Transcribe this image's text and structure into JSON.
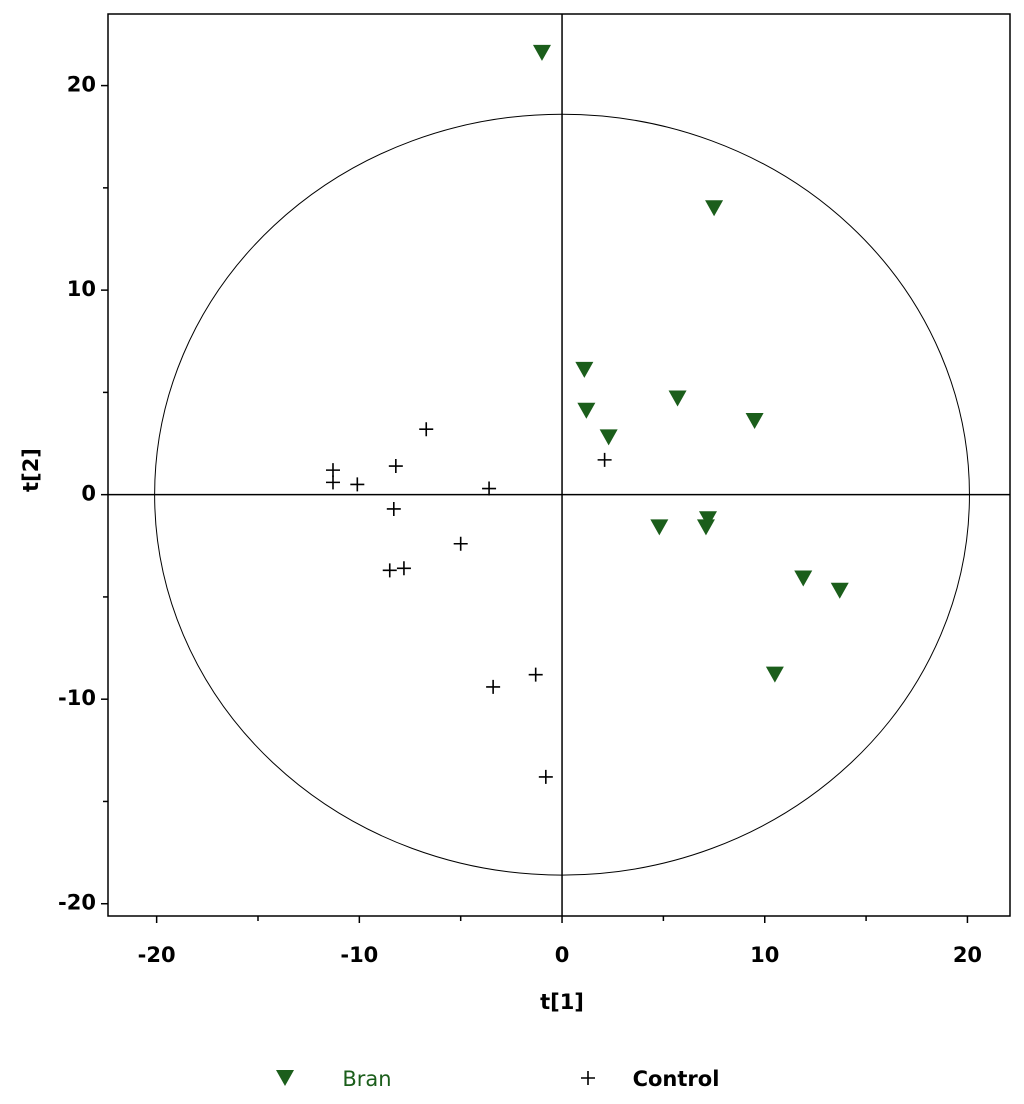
{
  "chart_data": {
    "type": "scatter",
    "x_label": "t[1]",
    "y_label": "t[2]",
    "xlim": [
      -22.4,
      22.1
    ],
    "ylim": [
      -20.6,
      23.5
    ],
    "xticks": [
      -20,
      -10,
      0,
      10,
      20
    ],
    "yticks": [
      -20,
      -10,
      0,
      10,
      20
    ],
    "xminorticks": [
      -15,
      -5,
      5,
      15
    ],
    "yminorticks": [
      -15,
      -5,
      5,
      15
    ],
    "ellipse": {
      "rx": 20.1,
      "ry": 18.6
    },
    "legend": "bottom",
    "series": [
      {
        "name": "Bran",
        "color": "#1b5e1b",
        "marker": "triangle-down",
        "x": [
          -0.99,
          7.5,
          1.1,
          5.7,
          1.2,
          2.3,
          9.5,
          4.8,
          7.2,
          7.1,
          11.9,
          13.7,
          10.5
        ],
        "y": [
          21.6,
          14.0,
          6.1,
          4.7,
          4.1,
          2.8,
          3.6,
          -1.6,
          -1.2,
          -1.6,
          -4.1,
          -4.7,
          -8.8
        ]
      },
      {
        "name": "Control",
        "color": "#000000",
        "marker": "plus",
        "x": [
          -6.7,
          -11.3,
          -11.3,
          -10.1,
          -8.2,
          -3.6,
          2.1,
          -8.3,
          -5.0,
          -8.5,
          -7.8,
          -3.4,
          -1.3,
          -0.8
        ],
        "y": [
          3.2,
          1.2,
          0.6,
          0.5,
          1.4,
          0.3,
          1.7,
          -0.7,
          -2.4,
          -3.7,
          -3.6,
          -9.4,
          -8.8,
          -13.8
        ]
      }
    ]
  }
}
